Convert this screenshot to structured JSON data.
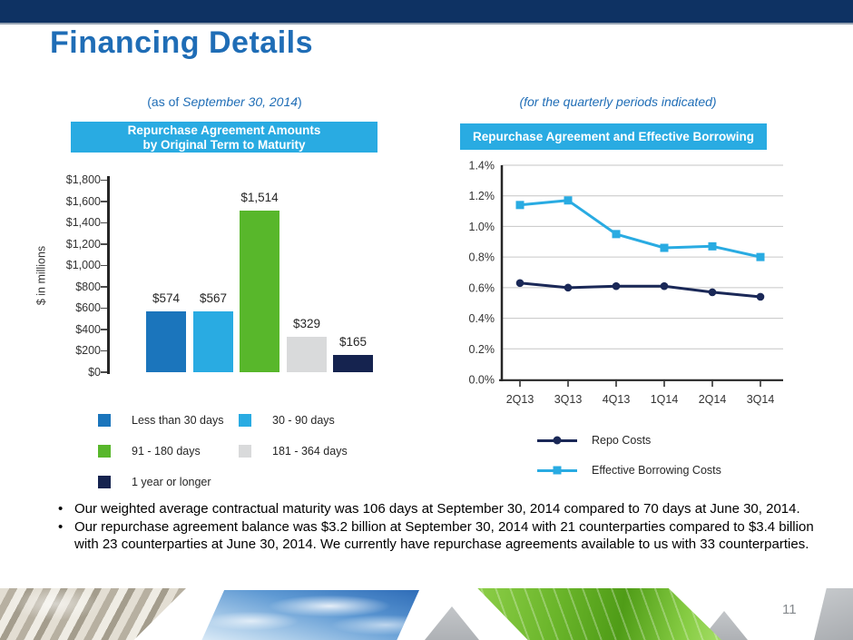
{
  "slide": {
    "title": "Financing Details",
    "page_number": "11"
  },
  "left_panel": {
    "subtitle_prefix": "(as of ",
    "subtitle_italic": "September 30, 2014",
    "subtitle_suffix": ")",
    "banner_line1": "Repurchase Agreement Amounts",
    "banner_line2": "by Original Term to Maturity"
  },
  "right_panel": {
    "subtitle": "(for the quarterly periods indicated)",
    "banner": "Repurchase Agreement and Effective Borrowing Costs"
  },
  "colors": {
    "accent_navy": "#0e3263",
    "title_blue": "#1f6db6",
    "banner_cyan": "#29abe2",
    "gridline_gray": "#c6c6c6",
    "axis_dark": "#262626"
  },
  "chart_data": [
    {
      "type": "bar",
      "title": "Repurchase Agreement Amounts by Original Term to Maturity",
      "xlabel": "",
      "ylabel": "$ in millions",
      "categories": [
        "Less than 30 days",
        "30 - 90 days",
        "91 - 180 days",
        "181 - 364 days",
        "1 year or longer"
      ],
      "values": [
        574,
        567,
        1514,
        329,
        165
      ],
      "value_labels": [
        "$574",
        "$567",
        "$1,514",
        "$329",
        "$165"
      ],
      "bar_colors": [
        "#1b75bc",
        "#29abe2",
        "#58b72b",
        "#d9dadb",
        "#15234f"
      ],
      "ylim": [
        0,
        1800
      ],
      "ytick_step": 200,
      "ytick_labels": [
        "$0",
        "$200",
        "$400",
        "$600",
        "$800",
        "$1,000",
        "$1,200",
        "$1,400",
        "$1,600",
        "$1,800"
      ],
      "grid": false,
      "legend_position": "bottom",
      "legend": [
        {
          "label": "Less than 30 days",
          "color": "#1b75bc"
        },
        {
          "label": "30 - 90 days",
          "color": "#29abe2"
        },
        {
          "label": "91 - 180 days",
          "color": "#58b72b"
        },
        {
          "label": "181 - 364 days",
          "color": "#d9dadb"
        },
        {
          "label": "1 year or longer",
          "color": "#15234f"
        }
      ]
    },
    {
      "type": "line",
      "title": "Repurchase Agreement and Effective Borrowing Costs",
      "xlabel": "",
      "ylabel": "",
      "categories": [
        "2Q13",
        "3Q13",
        "4Q13",
        "1Q14",
        "2Q14",
        "3Q14"
      ],
      "series": [
        {
          "name": "Repo Costs",
          "color": "#1a2857",
          "marker": "circle",
          "values": [
            0.63,
            0.6,
            0.61,
            0.61,
            0.57,
            0.54
          ]
        },
        {
          "name": "Effective Borrowing Costs",
          "color": "#29abe2",
          "marker": "square",
          "values": [
            1.14,
            1.17,
            0.95,
            0.86,
            0.87,
            0.8
          ]
        }
      ],
      "ylim": [
        0,
        1.4
      ],
      "ytick_step": 0.2,
      "ytick_labels": [
        "0.0%",
        "0.2%",
        "0.4%",
        "0.6%",
        "0.8%",
        "1.0%",
        "1.2%",
        "1.4%"
      ],
      "grid": true,
      "legend_position": "bottom"
    }
  ],
  "bullets": [
    "Our weighted average contractual maturity was 106 days at September 30, 2014 compared to 70 days at June 30, 2014.",
    "Our repurchase agreement balance was $3.2 billion at September 30, 2014 with 21 counterparties compared to $3.4 billion with 23 counterparties at June 30, 2014. We currently have repurchase agreements available to us with 33 counterparties."
  ]
}
